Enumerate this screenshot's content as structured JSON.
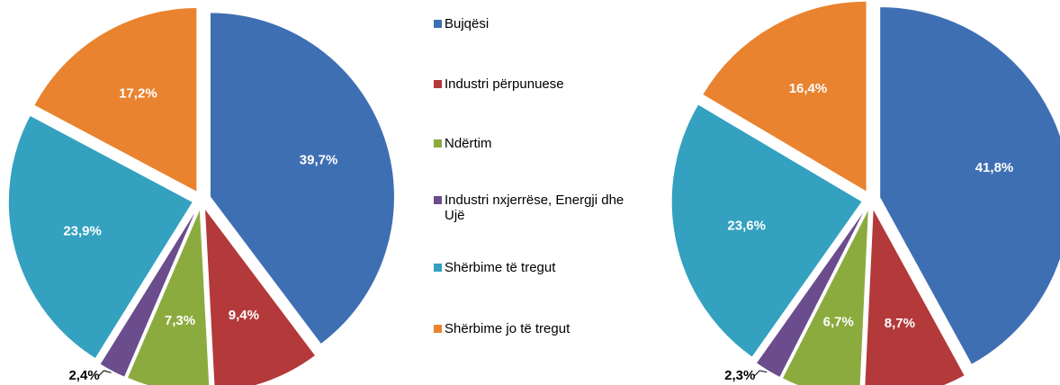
{
  "chart_data": [
    {
      "type": "pie",
      "categories": [
        "Bujqësi",
        "Industri përpunuese",
        "Ndërtim",
        "Industri nxjerrëse, Energji dhe Ujë",
        "Shërbime të tregut",
        "Shërbime jo të tregut"
      ],
      "colors": [
        "#3f6fb3",
        "#b3393a",
        "#8cab3f",
        "#6b4c8c",
        "#33a1bf",
        "#e9832f"
      ],
      "values": [
        39.7,
        9.4,
        7.3,
        2.4,
        23.9,
        17.2
      ],
      "value_labels": [
        "39,7%",
        "9,4%",
        "7,3%",
        "2,4%",
        "23,9%",
        "17,2%"
      ]
    },
    {
      "type": "pie",
      "values": [
        41.8,
        8.7,
        6.7,
        2.3,
        23.6,
        16.4
      ],
      "value_labels": [
        "41,8%",
        "8,7%",
        "6,7%",
        "2,3%",
        "23,6%",
        "16,4%"
      ]
    }
  ]
}
